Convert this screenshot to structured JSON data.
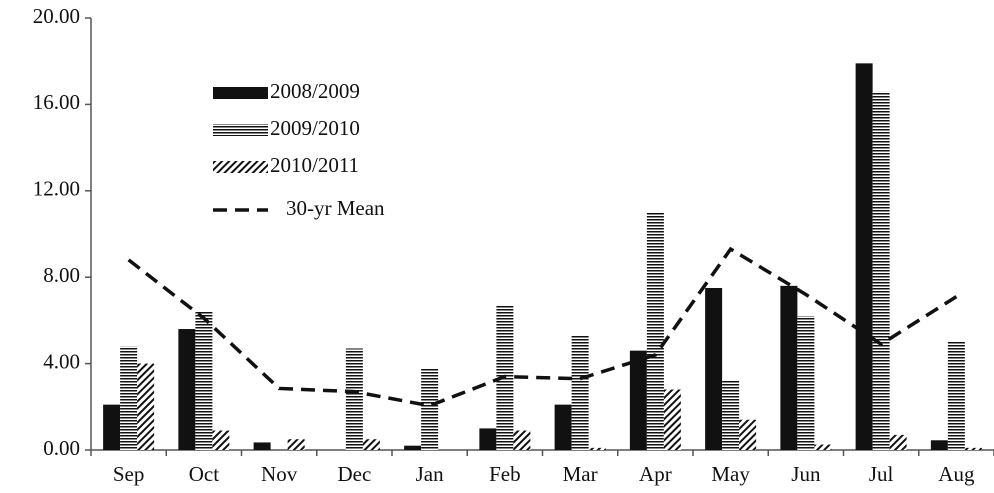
{
  "chart_data": {
    "type": "bar",
    "categories": [
      "Sep",
      "Oct",
      "Nov",
      "Dec",
      "Jan",
      "Feb",
      "Mar",
      "Apr",
      "May",
      "Jun",
      "Jul",
      "Aug"
    ],
    "series": [
      {
        "name": "2008/2009",
        "color": "#111111",
        "pattern": "solid",
        "values": [
          2.1,
          5.6,
          0.35,
          0,
          0.2,
          1.0,
          2.1,
          4.6,
          7.5,
          7.6,
          17.9,
          0.45
        ]
      },
      {
        "name": "2009/2010",
        "color": "#111111",
        "pattern": "horizontal",
        "values": [
          4.8,
          6.4,
          0,
          4.7,
          3.8,
          6.7,
          5.3,
          11.0,
          3.2,
          6.2,
          16.6,
          5.0
        ]
      },
      {
        "name": "2010/2011",
        "color": "#111111",
        "pattern": "diagonal",
        "values": [
          4.0,
          0.9,
          0.5,
          0.5,
          0,
          0.9,
          0.1,
          2.8,
          1.4,
          0.25,
          0.7,
          0.1
        ]
      },
      {
        "name": "30-yr Mean",
        "color": "#111111",
        "type": "line",
        "dash": true,
        "values": [
          8.8,
          6.1,
          2.85,
          2.7,
          2.05,
          3.4,
          3.3,
          4.4,
          9.3,
          7.2,
          4.9,
          7.1
        ]
      }
    ],
    "ylim": [
      0,
      20
    ],
    "yticks": [
      {
        "value": 0,
        "label": "0.00"
      },
      {
        "value": 4,
        "label": "4.00"
      },
      {
        "value": 8,
        "label": "8.00"
      },
      {
        "value": 12,
        "label": "12.00"
      },
      {
        "value": 16,
        "label": "16.00"
      },
      {
        "value": 20,
        "label": "20.00"
      }
    ],
    "grid": false,
    "legend": "upper left"
  }
}
